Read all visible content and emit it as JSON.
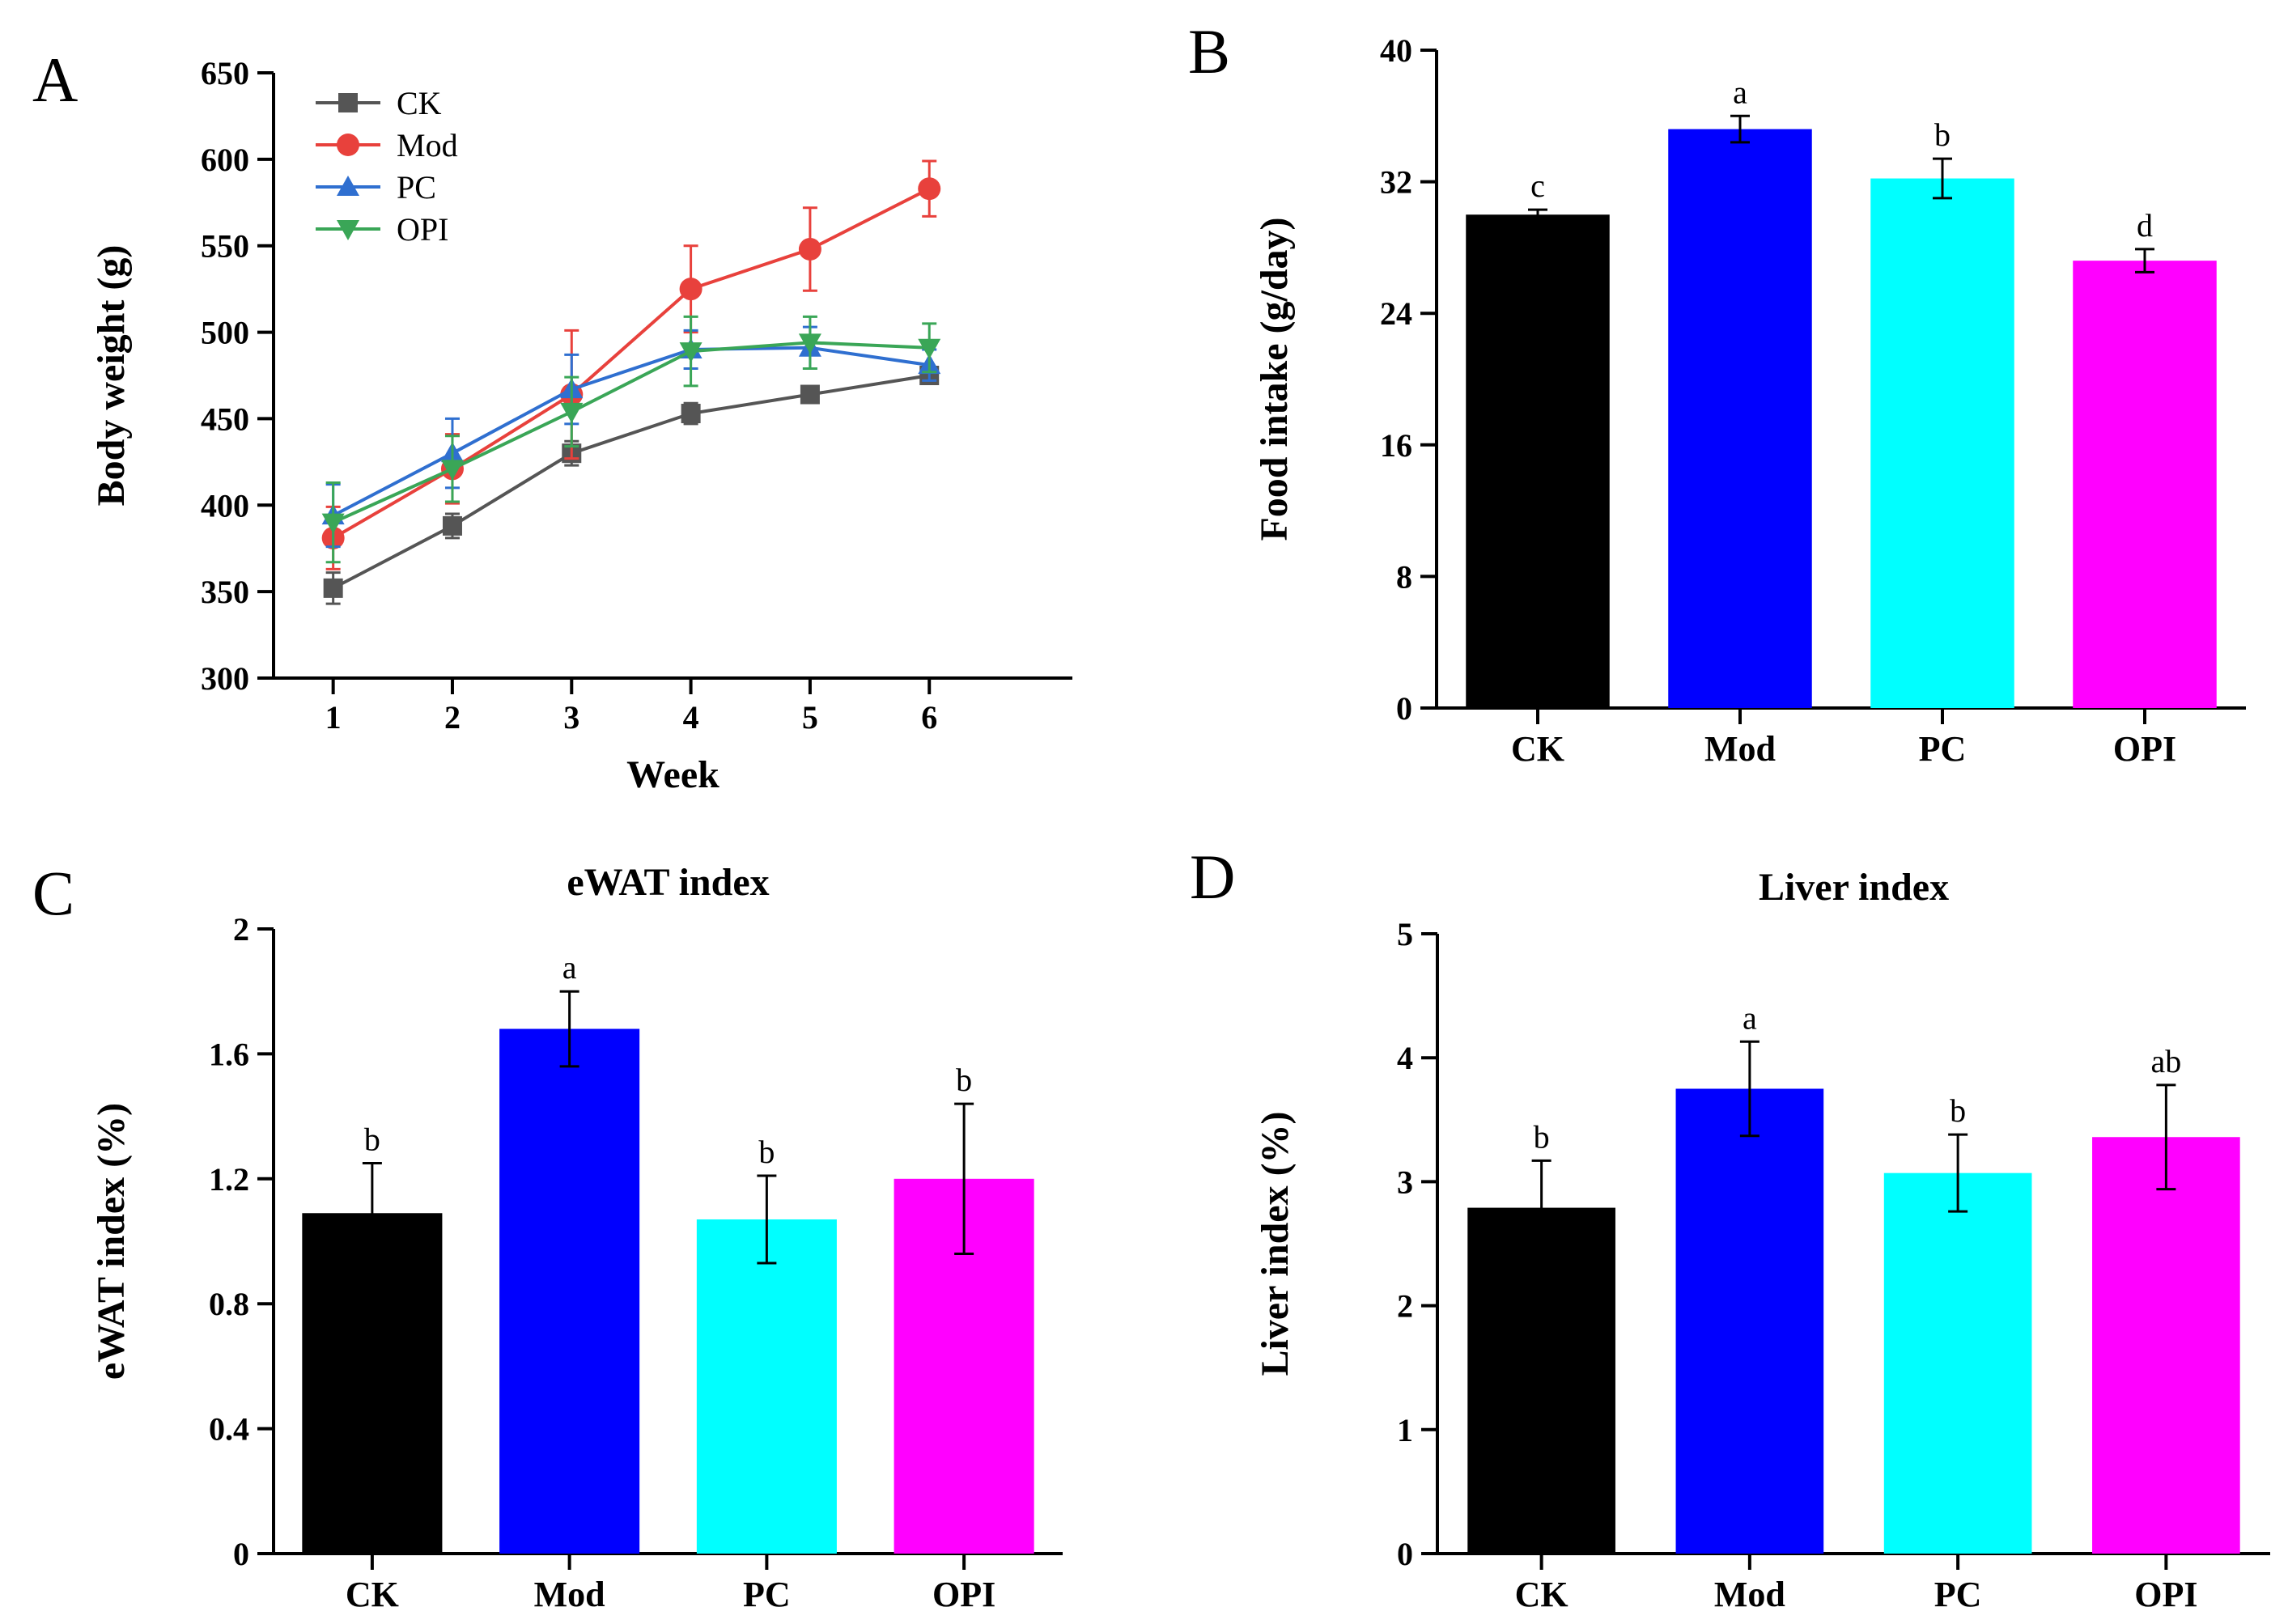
{
  "chart_data": [
    {
      "panel": "A",
      "type": "line",
      "title": "",
      "xlabel": "Week",
      "ylabel": "Body weight (g)",
      "x": [
        1,
        2,
        3,
        4,
        5,
        6
      ],
      "xlim": [
        0.5,
        7.2
      ],
      "ylim": [
        300,
        650
      ],
      "yticks": [
        300,
        350,
        400,
        450,
        500,
        550,
        600,
        650
      ],
      "legend_position": "top-left",
      "series": [
        {
          "name": "CK",
          "color": "#555555",
          "marker": "square",
          "values": [
            352,
            388,
            430,
            453,
            464,
            475
          ],
          "errors": [
            9,
            7,
            7,
            6,
            4,
            4
          ]
        },
        {
          "name": "Mod",
          "color": "#e8413c",
          "marker": "circle",
          "values": [
            381,
            421,
            464,
            525,
            548,
            583
          ],
          "errors": [
            18,
            20,
            37,
            25,
            24,
            16
          ]
        },
        {
          "name": "PC",
          "color": "#2f6fd0",
          "marker": "triangle-up",
          "values": [
            394,
            430,
            467,
            490,
            491,
            481
          ],
          "errors": [
            18,
            20,
            20,
            11,
            12,
            9
          ]
        },
        {
          "name": "OPI",
          "color": "#3aa657",
          "marker": "triangle-down",
          "values": [
            390,
            421,
            454,
            489,
            494,
            491
          ],
          "errors": [
            23,
            19,
            20,
            20,
            15,
            14
          ]
        }
      ]
    },
    {
      "panel": "B",
      "type": "bar",
      "title": "",
      "xlabel": "",
      "ylabel": "Food intake (g/day)",
      "categories": [
        "CK",
        "Mod",
        "PC",
        "OPI"
      ],
      "values": [
        30.0,
        35.2,
        32.2,
        27.2
      ],
      "errors": [
        0.3,
        0.8,
        1.2,
        0.7
      ],
      "significance": [
        "c",
        "a",
        "b",
        "d"
      ],
      "colors": [
        "#000000",
        "#0000ff",
        "#00ffff",
        "#ff00ff"
      ],
      "ylim": [
        0,
        40
      ],
      "yticks": [
        0,
        8,
        16,
        24,
        32,
        40
      ]
    },
    {
      "panel": "C",
      "type": "bar",
      "title": "eWAT index",
      "xlabel": "",
      "ylabel": "eWAT index (%)",
      "categories": [
        "CK",
        "Mod",
        "PC",
        "OPI"
      ],
      "values": [
        1.09,
        1.68,
        1.07,
        1.2
      ],
      "errors": [
        0.16,
        0.12,
        0.14,
        0.24
      ],
      "significance": [
        "b",
        "a",
        "b",
        "b"
      ],
      "colors": [
        "#000000",
        "#0000ff",
        "#00ffff",
        "#ff00ff"
      ],
      "ylim": [
        0,
        2
      ],
      "yticks": [
        0,
        0.4,
        0.8,
        1.2,
        1.6,
        2
      ],
      "ytick_labels": [
        "0",
        "0.4",
        "0.8",
        "1.2",
        "1.6",
        "2"
      ]
    },
    {
      "panel": "D",
      "type": "bar",
      "title": "Liver index",
      "xlabel": "",
      "ylabel": "Liver index (%)",
      "categories": [
        "CK",
        "Mod",
        "PC",
        "OPI"
      ],
      "values": [
        2.79,
        3.75,
        3.07,
        3.36
      ],
      "errors": [
        0.38,
        0.38,
        0.31,
        0.42
      ],
      "significance": [
        "b",
        "a",
        "b",
        "ab"
      ],
      "colors": [
        "#000000",
        "#0000ff",
        "#00ffff",
        "#ff00ff"
      ],
      "ylim": [
        0,
        5
      ],
      "yticks": [
        0,
        1,
        2,
        3,
        4,
        5
      ]
    }
  ]
}
